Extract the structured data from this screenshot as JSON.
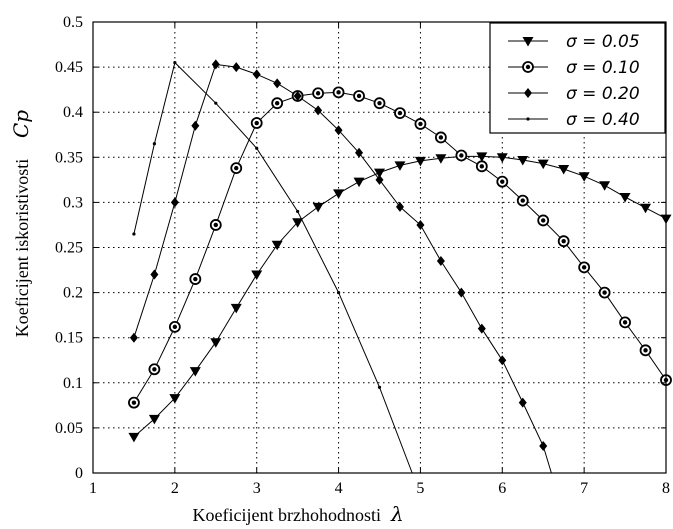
{
  "chart_data": {
    "type": "line",
    "xlabel": "Koeficijent brzhohodnosti",
    "xlabel_symbol": "λ",
    "ylabel": "Koeficijent iskoristivosti",
    "ylabel_symbol": "Cp",
    "xlim": [
      1,
      8
    ],
    "ylim": [
      0,
      0.5
    ],
    "x_ticks": [
      "1",
      "2",
      "3",
      "4",
      "5",
      "6",
      "7",
      "8"
    ],
    "y_ticks": [
      "0",
      "0.05",
      "0.1",
      "0.15",
      "0.2",
      "0.25",
      "0.3",
      "0.35",
      "0.4",
      "0.45",
      "0.5"
    ],
    "grid": true,
    "legend_position": "top-right",
    "series": [
      {
        "name": "σ = 0.05",
        "marker": "triangle-down",
        "x": [
          1.5,
          1.75,
          2.0,
          2.25,
          2.5,
          2.75,
          3.0,
          3.25,
          3.5,
          3.75,
          4.0,
          4.25,
          4.5,
          4.75,
          5.0,
          5.25,
          5.5,
          5.75,
          6.0,
          6.25,
          6.5,
          6.75,
          7.0,
          7.25,
          7.5,
          7.75,
          8.0
        ],
        "y": [
          0.04,
          0.06,
          0.083,
          0.113,
          0.145,
          0.183,
          0.22,
          0.253,
          0.278,
          0.295,
          0.31,
          0.323,
          0.333,
          0.341,
          0.346,
          0.349,
          0.351,
          0.351,
          0.35,
          0.347,
          0.343,
          0.337,
          0.329,
          0.319,
          0.306,
          0.294,
          0.282
        ]
      },
      {
        "name": "σ = 0.10",
        "marker": "circle",
        "x": [
          1.5,
          1.75,
          2.0,
          2.25,
          2.5,
          2.75,
          3.0,
          3.25,
          3.5,
          3.75,
          4.0,
          4.25,
          4.5,
          4.75,
          5.0,
          5.25,
          5.5,
          5.75,
          6.0,
          6.25,
          6.5,
          6.75,
          7.0,
          7.25,
          7.5,
          7.75,
          8.0
        ],
        "y": [
          0.078,
          0.115,
          0.162,
          0.215,
          0.275,
          0.338,
          0.388,
          0.41,
          0.418,
          0.421,
          0.422,
          0.418,
          0.41,
          0.399,
          0.387,
          0.372,
          0.352,
          0.34,
          0.323,
          0.302,
          0.28,
          0.257,
          0.228,
          0.2,
          0.167,
          0.136,
          0.103
        ]
      },
      {
        "name": "σ = 0.20",
        "marker": "plus",
        "x": [
          1.5,
          1.75,
          2.0,
          2.25,
          2.5,
          2.75,
          3.0,
          3.25,
          3.5,
          3.75,
          4.0,
          4.25,
          4.5,
          4.75,
          5.0,
          5.25,
          5.5,
          5.75,
          6.0,
          6.25,
          6.5,
          6.6
        ],
        "y": [
          0.15,
          0.22,
          0.3,
          0.385,
          0.453,
          0.45,
          0.442,
          0.432,
          0.418,
          0.402,
          0.38,
          0.355,
          0.325,
          0.295,
          0.275,
          0.235,
          0.2,
          0.16,
          0.125,
          0.078,
          0.03,
          0.0
        ]
      },
      {
        "name": "σ = 0.40",
        "marker": "dot",
        "x": [
          1.5,
          1.75,
          2.0,
          2.5,
          3.0,
          3.5,
          4.0,
          4.5,
          4.9
        ],
        "y": [
          0.265,
          0.365,
          0.455,
          0.41,
          0.36,
          0.29,
          0.2,
          0.095,
          0.0
        ]
      }
    ]
  }
}
